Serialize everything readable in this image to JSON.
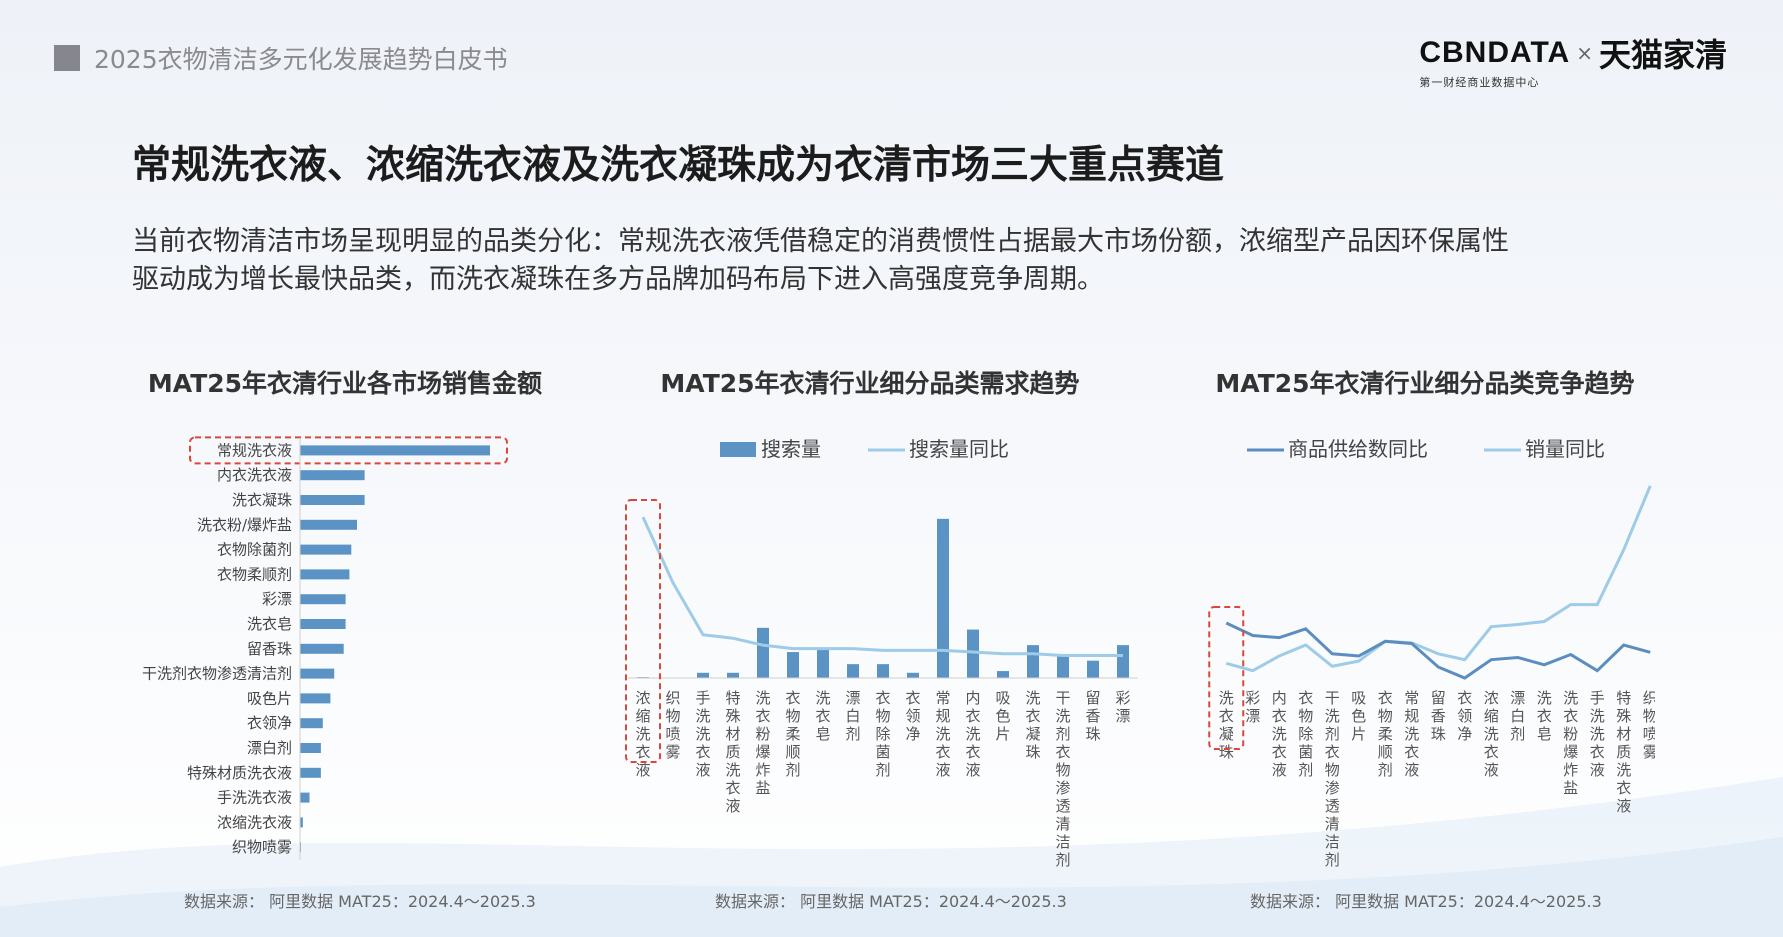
{
  "header": {
    "title": "2025衣物清洁多元化发展趋势白皮书"
  },
  "logo": {
    "brand1": "CBNDATA",
    "separator": "×",
    "brand2": "天猫家清",
    "subtitle": "第一财经商业数据中心"
  },
  "main_title": "常规洗衣液、浓缩洗衣液及洗衣凝珠成为衣清市场三大重点赛道",
  "description": {
    "line1": "当前衣物清洁市场呈现明显的品类分化：常规洗衣液凭借稳定的消费惯性占据最大市场份额，浓缩型产品因环保属性",
    "line2": "驱动成为增长最快品类，而洗衣凝珠在多方品牌加码布局下进入高强度竞争周期。"
  },
  "colors": {
    "bar": "#5b93c4",
    "line_light": "#9ecbe8",
    "line_dark": "#5b8dbf",
    "highlight": "#d9483b"
  },
  "chart_data": [
    {
      "type": "bar",
      "orientation": "horizontal",
      "title": "MAT25年衣清行业各市场销售金额",
      "categories": [
        "常规洗衣液",
        "内衣洗衣液",
        "洗衣凝珠",
        "洗衣粉/爆炸盐",
        "衣物除菌剂",
        "衣物柔顺剂",
        "彩漂",
        "洗衣皂",
        "留香珠",
        "干洗剂衣物渗透清洁剂",
        "吸色片",
        "衣领净",
        "漂白剂",
        "特殊材质洗衣液",
        "手洗洗衣液",
        "浓缩洗衣液",
        "织物喷雾"
      ],
      "values": [
        100,
        34,
        34,
        30,
        27,
        26,
        24,
        24,
        23,
        18,
        16,
        12,
        11,
        11,
        5,
        1.5,
        0.5
      ],
      "highlight": "常规洗衣液",
      "source": "数据来源：  阿里数据 MAT25：2024.4～2025.3"
    },
    {
      "type": "bar+line",
      "title": "MAT25年衣清行业细分品类需求趋势",
      "categories": [
        "浓缩洗衣液",
        "织物喷雾",
        "手洗洗衣液",
        "特殊材质洗衣液",
        "洗衣粉爆炸盐",
        "衣物柔顺剂",
        "洗衣皂",
        "漂白剂",
        "衣物除菌剂",
        "衣领净",
        "常规洗衣液",
        "内衣洗衣液",
        "吸色片",
        "洗衣凝珠",
        "干洗剂衣物渗透清洁剂",
        "留香珠",
        "彩漂"
      ],
      "series": [
        {
          "name": "搜索量",
          "kind": "bar",
          "values": [
            0.5,
            0,
            3,
            3,
            29,
            15,
            17,
            8,
            8,
            3,
            92,
            28,
            4,
            19,
            13,
            10,
            19
          ]
        },
        {
          "name": "搜索量同比",
          "kind": "line",
          "values": [
            93,
            55,
            25,
            23,
            19,
            17,
            17,
            17,
            16,
            16,
            16,
            15,
            14,
            14,
            13,
            13,
            13
          ]
        }
      ],
      "highlight": "浓缩洗衣液",
      "source": "数据来源：  阿里数据 MAT25：2024.4～2025.3"
    },
    {
      "type": "line",
      "title": "MAT25年衣清行业细分品类竞争趋势",
      "categories": [
        "洗衣凝珠",
        "彩漂",
        "内衣洗衣液",
        "衣物除菌剂",
        "干洗剂衣物渗透清洁剂",
        "吸色片",
        "衣物柔顺剂",
        "常规洗衣液",
        "留香珠",
        "衣领净",
        "浓缩洗衣液",
        "漂白剂",
        "洗衣皂",
        "洗衣粉爆炸盐",
        "手洗洗衣液",
        "特殊材质洗衣液",
        "织物喷雾"
      ],
      "series": [
        {
          "name": "商品供给数同比",
          "values": [
            75,
            58,
            55,
            67,
            33,
            30,
            50,
            47,
            15,
            0,
            25,
            28,
            18,
            32,
            10,
            45,
            35
          ]
        },
        {
          "name": "销量同比",
          "values": [
            20,
            10,
            30,
            45,
            16,
            23,
            50,
            48,
            33,
            25,
            70,
            73,
            77,
            100,
            100,
            175,
            262
          ]
        }
      ],
      "highlight": "洗衣凝珠",
      "source": "数据来源：  阿里数据 MAT25：2024.4～2025.3"
    }
  ]
}
